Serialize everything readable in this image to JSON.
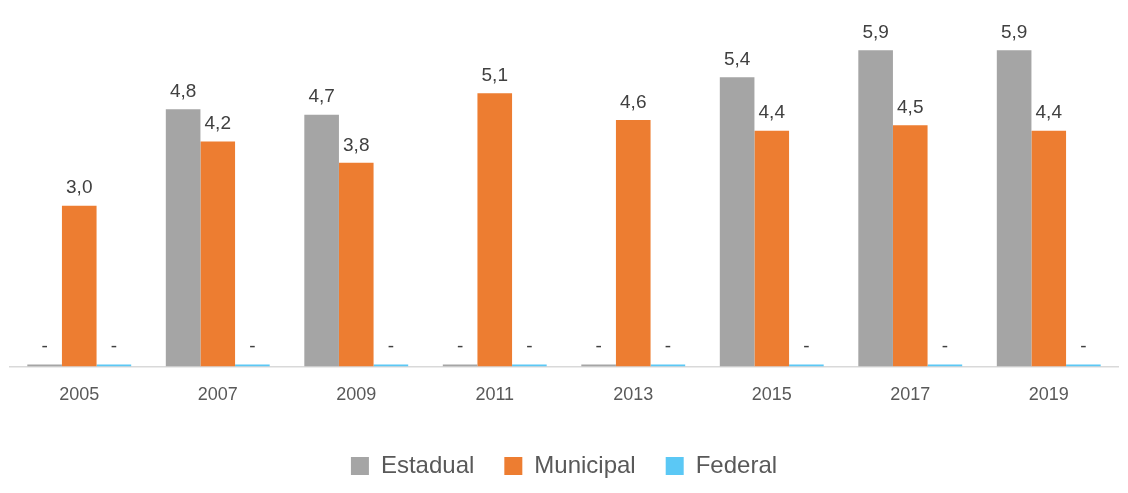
{
  "chart_data": {
    "type": "bar",
    "categories": [
      "2005",
      "2007",
      "2009",
      "2011",
      "2013",
      "2015",
      "2017",
      "2019"
    ],
    "series": [
      {
        "name": "Estadual",
        "color": "#a5a5a5",
        "values": [
          0,
          4.8,
          4.7,
          0,
          0,
          5.4,
          5.9,
          5.9
        ],
        "value_labels": [
          "-",
          "4,8",
          "4,7",
          "-",
          "-",
          "5,4",
          "5,9",
          "5,9"
        ]
      },
      {
        "name": "Municipal",
        "color": "#ed7d31",
        "values": [
          3.0,
          4.2,
          3.8,
          5.1,
          4.6,
          4.4,
          4.5,
          4.4
        ],
        "value_labels": [
          "3,0",
          "4,2",
          "3,8",
          "5,1",
          "4,6",
          "4,4",
          "4,5",
          "4,4"
        ]
      },
      {
        "name": "Federal",
        "color": "#5bc8f5",
        "values": [
          0,
          0,
          0,
          0,
          0,
          0,
          0,
          0
        ],
        "value_labels": [
          "-",
          "-",
          "-",
          "-",
          "-",
          "-",
          "-",
          "-"
        ]
      }
    ],
    "legend": "bottom",
    "grid": false,
    "tick_labels": "x"
  }
}
